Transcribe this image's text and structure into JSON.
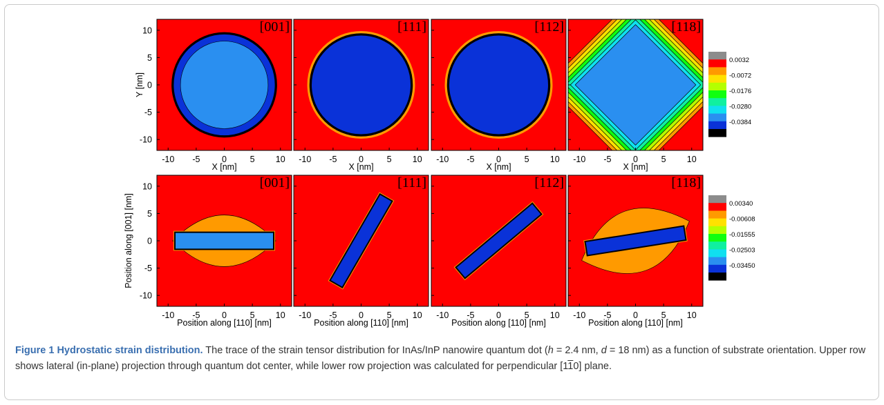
{
  "figure": {
    "caption": {
      "label": "Figure 1",
      "title": "Hydrostatic strain distribution.",
      "part1": " The trace of the strain tensor distribution for InAs/InP nanowire quantum dot (",
      "h_var": "h",
      "h_val": " = 2.4 nm, ",
      "d_var": "d",
      "d_val": " = 18 nm) as a function of substrate orientation. Upper row shows lateral (in-plane) projection through quantum dot center, while lower row projection was calculated for perpendicular [1",
      "bar_digit": "1",
      "part2": "0] plane."
    }
  },
  "chart_data": [
    {
      "type": "heatmap",
      "row": "top",
      "panels": [
        {
          "label": "[001]",
          "shape": "circle-core-shell",
          "core_color": "#2a8ff0",
          "shell_color": "#0a32d8"
        },
        {
          "label": "[111]",
          "shape": "circle",
          "core_color": "#0a32d8"
        },
        {
          "label": "[112]",
          "shape": "circle-jagged",
          "core_color": "#0a32d8"
        },
        {
          "label": "[118]",
          "shape": "diamond-contoured",
          "core_color": "#2a8ff0"
        }
      ],
      "xlabel": "X [nm]",
      "ylabel": "Y [nm]",
      "xlim": [
        -12,
        12
      ],
      "ylim": [
        -12,
        12
      ],
      "xticks": [
        "-10",
        "-5",
        "0",
        "5",
        "10"
      ],
      "yticks": [
        "10",
        "5",
        "0",
        "-5",
        "-10"
      ],
      "colorbar": {
        "levels": [
          "0.0032",
          "-0.0072",
          "-0.0176",
          "-0.0280",
          "-0.0384"
        ],
        "colors": [
          "#8c8c8c",
          "#ff0000",
          "#ff9a00",
          "#ffe100",
          "#b4ff00",
          "#10ff10",
          "#10f0a0",
          "#10e0f0",
          "#2a8ff0",
          "#0a32d8",
          "#000000"
        ]
      }
    },
    {
      "type": "heatmap",
      "row": "bottom",
      "panels": [
        {
          "label": "[001]",
          "angle_deg": 0,
          "core_color": "#2a8ff0",
          "lens": true
        },
        {
          "label": "[111]",
          "angle_deg": -60,
          "core_color": "#0a32d8",
          "lens": false
        },
        {
          "label": "[112]",
          "angle_deg": -40,
          "core_color": "#0a32d8",
          "lens": false
        },
        {
          "label": "[118]",
          "angle_deg": -9,
          "core_color": "#0a32d8",
          "lens": true
        }
      ],
      "xlabel": "Position along [110] [nm]",
      "ylabel": "Position along [001] [nm]",
      "xlim": [
        -12,
        12
      ],
      "ylim": [
        -12,
        12
      ],
      "xticks": [
        "-10",
        "-5",
        "0",
        "5",
        "10"
      ],
      "yticks": [
        "10",
        "5",
        "0",
        "-5",
        "-10"
      ],
      "colorbar": {
        "levels": [
          "0.00340",
          "-0.00608",
          "-0.01555",
          "-0.02503",
          "-0.03450"
        ],
        "colors": [
          "#8c8c8c",
          "#ff0000",
          "#ff9a00",
          "#ffe100",
          "#b4ff00",
          "#10ff10",
          "#10f0a0",
          "#10e0f0",
          "#2a8ff0",
          "#0a32d8",
          "#000000"
        ]
      }
    }
  ]
}
